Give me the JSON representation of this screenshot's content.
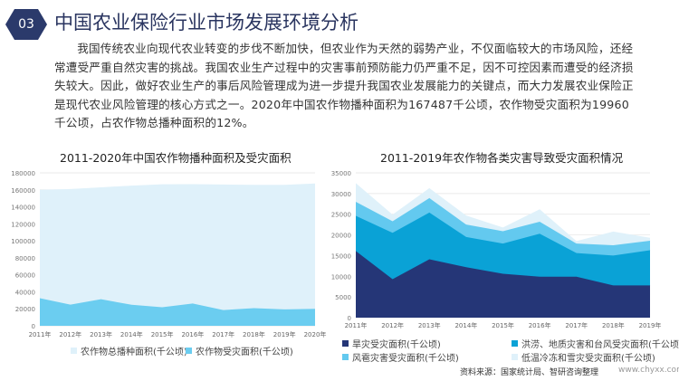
{
  "header": {
    "badge": "03",
    "title": "中国农业保险行业市场发展环境分析"
  },
  "paragraph": "我国传统农业向现代农业转变的步伐不断加快，但农业作为天然的弱势产业，不仅面临较大的市场风险，还经常遭受严重自然灾害的挑战。我国农业生产过程中的灾害事前预防能力仍严重不足，因不可控因素而遭受的经济损失较大。因此，做好农业生产的事后风险管理成为进一步提升我国农业发展能力的关键点，而大力发展农业保险正是现代农业风险管理的核心方式之一。2020年中国农作物播种面积为167487千公顷，农作物受灾面积为19960千公顷，占农作物总播种面积的12%。",
  "source": "资料来源：国家统计局、智研咨询整理",
  "site": "www.chyxx.com",
  "chart_data": [
    {
      "type": "area",
      "title": "2011-2020年中国农作物播种面积及受灾面积",
      "categories": [
        "2011年",
        "2012年",
        "2013年",
        "2014年",
        "2015年",
        "2016年",
        "2017年",
        "2018年",
        "2019年",
        "2020年"
      ],
      "ylim": [
        0,
        180000
      ],
      "yticks": [
        "0",
        "20000",
        "40000",
        "60000",
        "80000",
        "100000",
        "120000",
        "140000",
        "160000",
        "180000"
      ],
      "grid": true,
      "legend": "bottom",
      "series": [
        {
          "name": "农作物总播种面积(千公顷)",
          "color": "#dff1fa",
          "values": [
            160000,
            161000,
            163000,
            165000,
            166500,
            166700,
            166300,
            165900,
            165900,
            167487
          ]
        },
        {
          "name": "农作物受灾面积(千公顷)",
          "color": "#6bcdf0",
          "values": [
            32500,
            24900,
            31300,
            24700,
            21800,
            26200,
            18500,
            20800,
            19300,
            19960
          ]
        }
      ]
    },
    {
      "type": "area",
      "stacked": true,
      "title": "2011-2019年农作物各类灾害导致受灾面积情况",
      "categories": [
        "2011年",
        "2012年",
        "2013年",
        "2014年",
        "2015年",
        "2016年",
        "2017年",
        "2018年",
        "2019年"
      ],
      "ylim": [
        0,
        35000
      ],
      "yticks": [
        "0",
        "5000",
        "10000",
        "15000",
        "20000",
        "25000",
        "30000",
        "35000"
      ],
      "grid": true,
      "legend": "bottom",
      "series": [
        {
          "name": "旱灾受灾面积(千公顷)",
          "color": "#253677",
          "values": [
            16100,
            9300,
            14100,
            12200,
            10600,
            9900,
            9900,
            7800,
            7800
          ]
        },
        {
          "name": "洪涝、地质灾害和台风受灾面积(千公顷)",
          "color": "#0aa2d6",
          "values": [
            8500,
            11200,
            11300,
            7300,
            7300,
            10400,
            5700,
            7200,
            8500
          ]
        },
        {
          "name": "风雹灾害受灾面积(千公顷)",
          "color": "#63c9ef",
          "values": [
            3400,
            2800,
            3500,
            3000,
            3000,
            2900,
            2300,
            2500,
            2300
          ]
        },
        {
          "name": "低温冷冻和雪灾受灾面积(千公顷)",
          "color": "#dff1fa",
          "values": [
            4500,
            1600,
            2400,
            2200,
            900,
            3000,
            600,
            3300,
            700
          ]
        }
      ]
    }
  ]
}
